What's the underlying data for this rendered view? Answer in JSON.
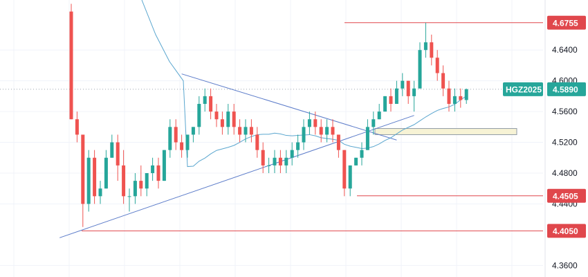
{
  "chart_data": {
    "type": "candlestick",
    "symbol": "HGZ2025",
    "last_price": 4.589,
    "ylim": [
      4.345,
      4.705
    ],
    "y_ticks": [
      "4.6400",
      "4.6000",
      "4.5600",
      "4.5200",
      "4.4800",
      "4.4400",
      "4.3600"
    ],
    "level_labels": [
      {
        "value": "4.6755",
        "price": 4.6755
      },
      {
        "value": "4.4505",
        "price": 4.4505
      },
      {
        "value": "4.4050",
        "price": 4.405
      }
    ],
    "last_price_label": "4.5890",
    "trendlines": [
      {
        "name": "upper-descending",
        "from": [
          19,
          4.609
        ],
        "to": [
          56,
          4.523
        ]
      },
      {
        "name": "lower-ascending",
        "from": [
          -2,
          4.396
        ],
        "to": [
          59,
          4.555
        ]
      }
    ],
    "candles": [
      [
        4.69,
        4.7,
        4.55,
        4.55
      ],
      [
        4.55,
        4.56,
        4.52,
        4.53
      ],
      [
        4.53,
        4.53,
        4.41,
        4.44
      ],
      [
        4.44,
        4.51,
        4.43,
        4.5
      ],
      [
        4.5,
        4.51,
        4.44,
        4.45
      ],
      [
        4.45,
        4.47,
        4.44,
        4.46
      ],
      [
        4.46,
        4.51,
        4.46,
        4.5
      ],
      [
        4.5,
        4.53,
        4.5,
        4.52
      ],
      [
        4.52,
        4.53,
        4.47,
        4.49
      ],
      [
        4.49,
        4.51,
        4.44,
        4.45
      ],
      [
        4.45,
        4.46,
        4.43,
        4.45
      ],
      [
        4.45,
        4.48,
        4.44,
        4.47
      ],
      [
        4.47,
        4.49,
        4.45,
        4.46
      ],
      [
        4.46,
        4.48,
        4.45,
        4.48
      ],
      [
        4.48,
        4.5,
        4.47,
        4.49
      ],
      [
        4.49,
        4.5,
        4.46,
        4.47
      ],
      [
        4.47,
        4.51,
        4.47,
        4.51
      ],
      [
        4.51,
        4.55,
        4.5,
        4.54
      ],
      [
        4.54,
        4.55,
        4.51,
        4.52
      ],
      [
        4.52,
        4.53,
        4.5,
        4.51
      ],
      [
        4.51,
        4.53,
        4.5,
        4.53
      ],
      [
        4.53,
        4.54,
        4.52,
        4.54
      ],
      [
        4.54,
        4.58,
        4.53,
        4.57
      ],
      [
        4.57,
        4.59,
        4.56,
        4.58
      ],
      [
        4.58,
        4.59,
        4.55,
        4.56
      ],
      [
        4.56,
        4.57,
        4.54,
        4.55
      ],
      [
        4.55,
        4.56,
        4.53,
        4.54
      ],
      [
        4.54,
        4.57,
        4.53,
        4.56
      ],
      [
        4.56,
        4.57,
        4.53,
        4.54
      ],
      [
        4.54,
        4.55,
        4.52,
        4.53
      ],
      [
        4.53,
        4.55,
        4.52,
        4.54
      ],
      [
        4.54,
        4.55,
        4.52,
        4.53
      ],
      [
        4.53,
        4.54,
        4.5,
        4.51
      ],
      [
        4.51,
        4.52,
        4.48,
        4.49
      ],
      [
        4.49,
        4.5,
        4.48,
        4.49
      ],
      [
        4.49,
        4.51,
        4.48,
        4.5
      ],
      [
        4.5,
        4.51,
        4.48,
        4.49
      ],
      [
        4.49,
        4.51,
        4.48,
        4.5
      ],
      [
        4.5,
        4.52,
        4.49,
        4.51
      ],
      [
        4.51,
        4.53,
        4.5,
        4.52
      ],
      [
        4.52,
        4.55,
        4.51,
        4.54
      ],
      [
        4.54,
        4.56,
        4.53,
        4.55
      ],
      [
        4.55,
        4.56,
        4.53,
        4.54
      ],
      [
        4.54,
        4.55,
        4.52,
        4.53
      ],
      [
        4.53,
        4.55,
        4.52,
        4.54
      ],
      [
        4.54,
        4.55,
        4.52,
        4.53
      ],
      [
        4.53,
        4.53,
        4.5,
        4.51
      ],
      [
        4.51,
        4.51,
        4.45,
        4.46
      ],
      [
        4.46,
        4.49,
        4.45,
        4.49
      ],
      [
        4.49,
        4.5,
        4.49,
        4.5
      ],
      [
        4.5,
        4.52,
        4.49,
        4.51
      ],
      [
        4.51,
        4.55,
        4.51,
        4.54
      ],
      [
        4.54,
        4.56,
        4.53,
        4.55
      ],
      [
        4.55,
        4.57,
        4.55,
        4.56
      ],
      [
        4.56,
        4.58,
        4.56,
        4.58
      ],
      [
        4.58,
        4.59,
        4.56,
        4.57
      ],
      [
        4.57,
        4.6,
        4.57,
        4.59
      ],
      [
        4.59,
        4.61,
        4.58,
        4.6
      ],
      [
        4.6,
        4.6,
        4.57,
        4.58
      ],
      [
        4.58,
        4.6,
        4.56,
        4.59
      ],
      [
        4.59,
        4.65,
        4.59,
        4.64
      ],
      [
        4.64,
        4.6755,
        4.63,
        4.65
      ],
      [
        4.65,
        4.66,
        4.62,
        4.63
      ],
      [
        4.63,
        4.64,
        4.6,
        4.61
      ],
      [
        4.61,
        4.62,
        4.58,
        4.59
      ],
      [
        4.59,
        4.6,
        4.56,
        4.57
      ],
      [
        4.57,
        4.59,
        4.56,
        4.58
      ],
      [
        4.58,
        4.59,
        4.565,
        4.575
      ],
      [
        4.575,
        4.59,
        4.57,
        4.589
      ]
    ],
    "ma_color": "#5aa6cf",
    "up_color": "#26a69a",
    "down_color": "#ef5350",
    "level_color": "#e0474c",
    "trend_color": "#5b7bc9",
    "last_price_color": "#26a69a",
    "zone_fill": "#f7f3d5"
  }
}
